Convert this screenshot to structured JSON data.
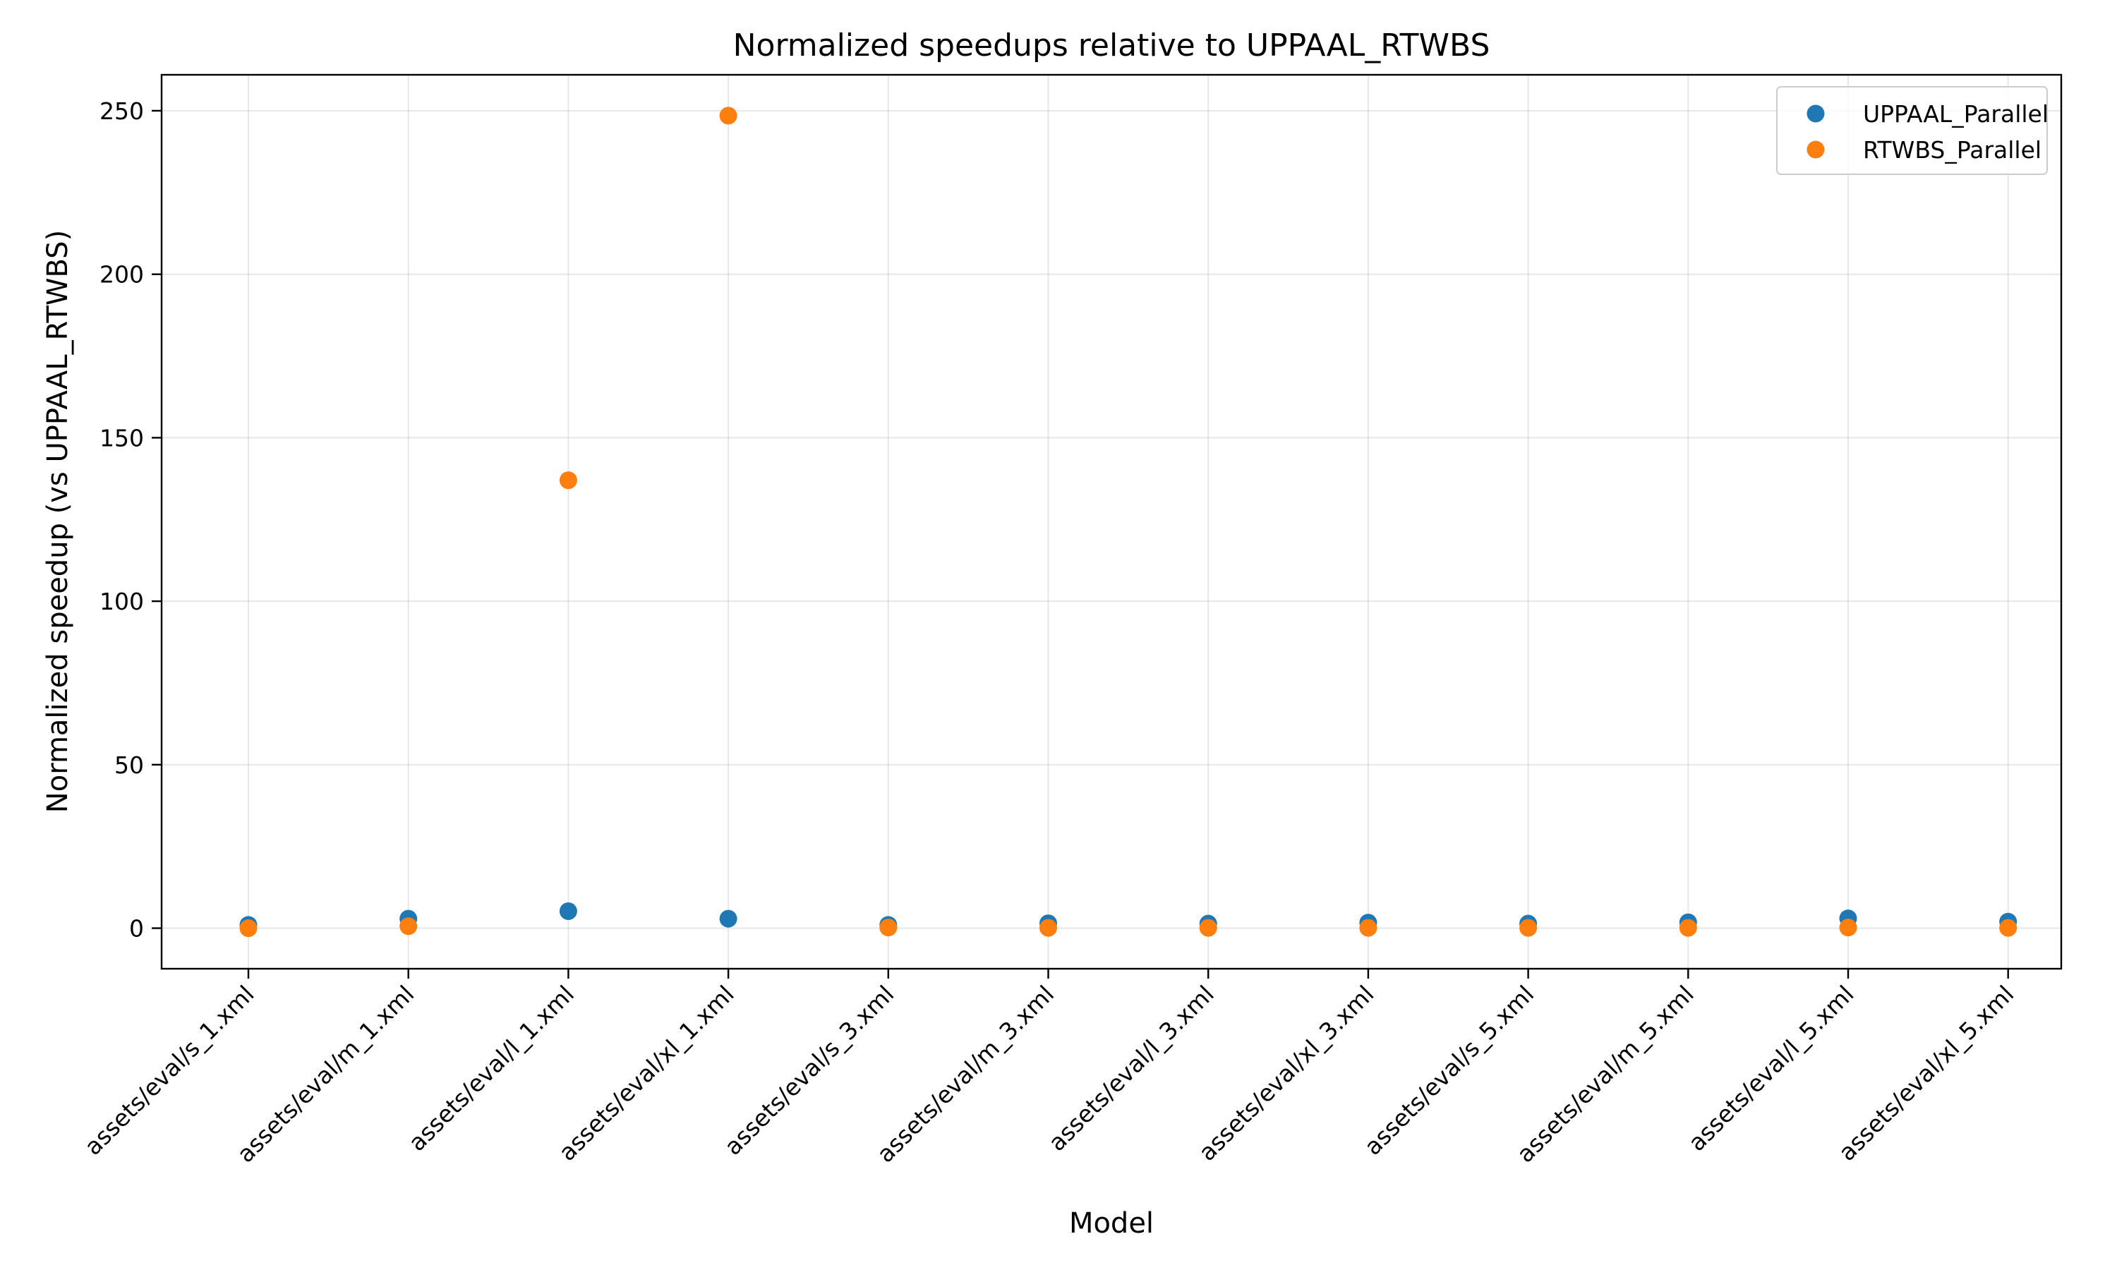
{
  "chart_data": {
    "type": "scatter",
    "title": "Normalized speedups relative to UPPAAL_RTWBS",
    "xlabel": "Model",
    "ylabel": "Normalized speedup (vs UPPAAL_RTWBS)",
    "categories": [
      "assets/eval/s_1.xml",
      "assets/eval/m_1.xml",
      "assets/eval/l_1.xml",
      "assets/eval/xl_1.xml",
      "assets/eval/s_3.xml",
      "assets/eval/m_3.xml",
      "assets/eval/l_3.xml",
      "assets/eval/xl_3.xml",
      "assets/eval/s_5.xml",
      "assets/eval/m_5.xml",
      "assets/eval/l_5.xml",
      "assets/eval/xl_5.xml"
    ],
    "ylim": [
      -12.4,
      261
    ],
    "yticks": [
      0,
      50,
      100,
      150,
      200,
      250
    ],
    "grid": true,
    "legend_position": "top-right",
    "series": [
      {
        "name": "UPPAAL_Parallel",
        "color": "#1f77b4",
        "values": [
          1.0,
          2.9,
          5.2,
          2.9,
          1.0,
          1.5,
          1.4,
          1.7,
          1.4,
          1.8,
          3.0,
          2.0
        ]
      },
      {
        "name": "RTWBS_Parallel",
        "color": "#ff7f0e",
        "values": [
          0.0,
          0.6,
          137.0,
          248.5,
          0.2,
          0.1,
          0.1,
          0.1,
          0.1,
          0.1,
          0.2,
          0.1
        ]
      }
    ]
  }
}
